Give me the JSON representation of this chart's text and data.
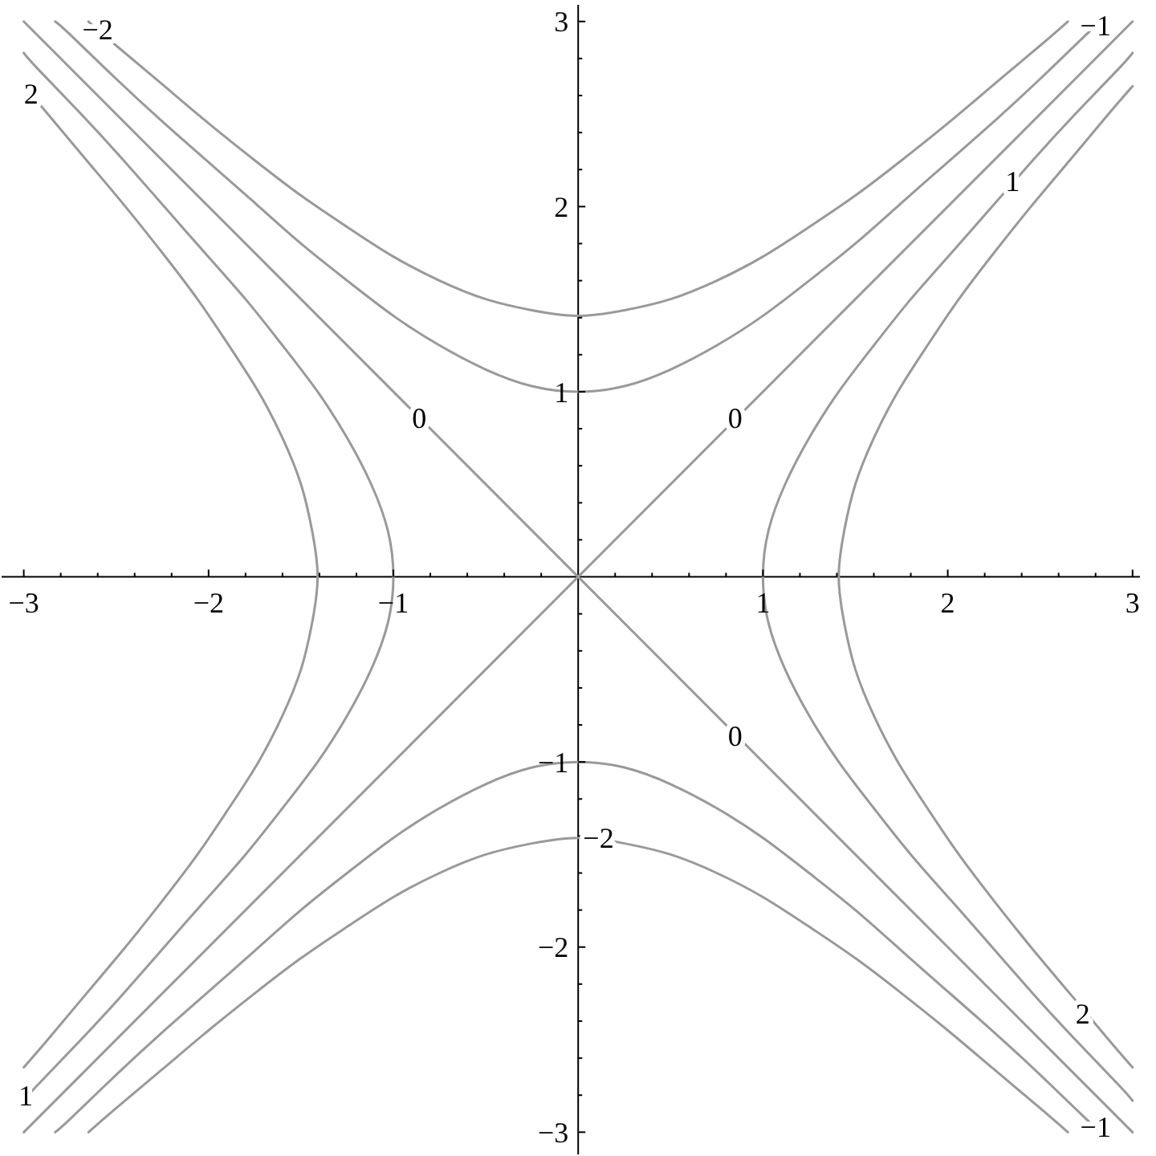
{
  "chart_data": {
    "type": "line",
    "xlim": [
      -3.12,
      3.04
    ],
    "ylim": [
      -3.12,
      3.09
    ],
    "xticks": [
      -3,
      {
        "value": -2.8,
        "label": null
      },
      {
        "value": -2.6,
        "label": null
      },
      {
        "value": -2.4,
        "label": null
      },
      {
        "value": -2.2,
        "label": null
      },
      -2,
      {
        "value": -1.8,
        "label": null
      },
      {
        "value": -1.6,
        "label": null
      },
      {
        "value": -1.4,
        "label": null
      },
      {
        "value": -1.2,
        "label": null
      },
      -1,
      {
        "value": -0.8,
        "label": null
      },
      {
        "value": -0.6,
        "label": null
      },
      {
        "value": -0.4,
        "label": null
      },
      {
        "value": -0.2,
        "label": null
      },
      {
        "value": 0.2,
        "label": null
      },
      {
        "value": 0.4,
        "label": null
      },
      {
        "value": 0.6,
        "label": null
      },
      {
        "value": 0.8,
        "label": null
      },
      1,
      {
        "value": 1.2,
        "label": null
      },
      {
        "value": 1.4,
        "label": null
      },
      {
        "value": 1.6,
        "label": null
      },
      {
        "value": 1.8,
        "label": null
      },
      2,
      {
        "value": 2.2,
        "label": null
      },
      {
        "value": 2.4,
        "label": null
      },
      {
        "value": 2.6,
        "label": null
      },
      {
        "value": 2.8,
        "label": null
      },
      3
    ],
    "yticks": [
      -3,
      {
        "value": -2.8,
        "label": null
      },
      {
        "value": -2.6,
        "label": null
      },
      {
        "value": -2.4,
        "label": null
      },
      {
        "value": -2.2,
        "label": null
      },
      -2,
      {
        "value": -1.8,
        "label": null
      },
      {
        "value": -1.6,
        "label": null
      },
      {
        "value": -1.4,
        "label": null
      },
      {
        "value": -1.2,
        "label": null
      },
      -1,
      {
        "value": -0.8,
        "label": null
      },
      {
        "value": -0.6,
        "label": null
      },
      {
        "value": -0.4,
        "label": null
      },
      {
        "value": -0.2,
        "label": null
      },
      {
        "value": 0.2,
        "label": null
      },
      {
        "value": 0.4,
        "label": null
      },
      {
        "value": 0.6,
        "label": null
      },
      {
        "value": 0.8,
        "label": null
      },
      1,
      {
        "value": 1.2,
        "label": null
      },
      {
        "value": 1.4,
        "label": null
      },
      {
        "value": 1.6,
        "label": null
      },
      {
        "value": 1.8,
        "label": null
      },
      2,
      {
        "value": 2.2,
        "label": null
      },
      {
        "value": 2.4,
        "label": null
      },
      {
        "value": 2.6,
        "label": null
      },
      {
        "value": 2.8,
        "label": null
      },
      3
    ],
    "marker": "none",
    "series": [
      {
        "color": "#999999",
        "x": [
          -2.65,
          -2.5,
          -2.25,
          -2,
          -1.75,
          -1.5,
          -1.25,
          -1,
          -0.75,
          -0.5,
          -0.25,
          0,
          0.25,
          0.5,
          0.75,
          1,
          1.25,
          1.5,
          1.75,
          2,
          2.25,
          2.5,
          2.65
        ],
        "values": [
          3,
          2.87,
          2.66,
          2.45,
          2.25,
          2.06,
          1.89,
          1.73,
          1.6,
          1.5,
          1.44,
          1.41,
          1.44,
          1.5,
          1.6,
          1.73,
          1.89,
          2.06,
          2.25,
          2.45,
          2.66,
          2.87,
          3
        ]
      },
      {
        "color": "#999999",
        "x": [
          -2.65,
          -2.5,
          -2.25,
          -2,
          -1.75,
          -1.5,
          -1.25,
          -1,
          -0.75,
          -0.5,
          -0.25,
          0,
          0.25,
          0.5,
          0.75,
          1,
          1.25,
          1.5,
          1.75,
          2,
          2.25,
          2.5,
          2.65
        ],
        "values": [
          -3,
          -2.87,
          -2.66,
          -2.45,
          -2.25,
          -2.06,
          -1.89,
          -1.73,
          -1.6,
          -1.5,
          -1.44,
          -1.41,
          -1.44,
          -1.5,
          -1.6,
          -1.73,
          -1.89,
          -2.06,
          -2.25,
          -2.45,
          -2.66,
          -2.87,
          -3
        ]
      },
      {
        "color": "#999999",
        "x": [
          -2.83,
          -2.75,
          -2.5,
          -2.25,
          -2,
          -1.75,
          -1.5,
          -1.25,
          -1,
          -0.75,
          -0.5,
          -0.25,
          0,
          0.25,
          0.5,
          0.75,
          1,
          1.25,
          1.5,
          1.75,
          2,
          2.25,
          2.5,
          2.75,
          2.83
        ],
        "values": [
          3,
          2.93,
          2.69,
          2.46,
          2.24,
          2.02,
          1.8,
          1.6,
          1.41,
          1.25,
          1.12,
          1.03,
          1,
          1.03,
          1.12,
          1.25,
          1.41,
          1.6,
          1.8,
          2.02,
          2.24,
          2.46,
          2.69,
          2.93,
          3
        ]
      },
      {
        "color": "#999999",
        "x": [
          -2.83,
          -2.75,
          -2.5,
          -2.25,
          -2,
          -1.75,
          -1.5,
          -1.25,
          -1,
          -0.75,
          -0.5,
          -0.25,
          0,
          0.25,
          0.5,
          0.75,
          1,
          1.25,
          1.5,
          1.75,
          2,
          2.25,
          2.5,
          2.75,
          2.83
        ],
        "values": [
          -3,
          -2.93,
          -2.69,
          -2.46,
          -2.24,
          -2.02,
          -1.8,
          -1.6,
          -1.41,
          -1.25,
          -1.12,
          -1.03,
          -1,
          -1.03,
          -1.12,
          -1.25,
          -1.41,
          -1.6,
          -1.8,
          -2.02,
          -2.24,
          -2.46,
          -2.69,
          -2.93,
          -3
        ]
      },
      {
        "color": "#999999",
        "x": [
          -3,
          3
        ],
        "values": [
          -3,
          3
        ]
      },
      {
        "color": "#999999",
        "x": [
          -3,
          3
        ],
        "values": [
          3,
          -3
        ]
      },
      {
        "color": "#999999",
        "x": [
          3,
          2.93,
          2.69,
          2.46,
          2.24,
          2.02,
          1.8,
          1.6,
          1.41,
          1.25,
          1.12,
          1.03,
          1,
          1.03,
          1.12,
          1.25,
          1.41,
          1.6,
          1.8,
          2.02,
          2.24,
          2.46,
          2.69,
          2.93,
          3
        ],
        "values": [
          -2.83,
          -2.75,
          -2.5,
          -2.25,
          -2,
          -1.75,
          -1.5,
          -1.25,
          -1,
          -0.75,
          -0.5,
          -0.25,
          0,
          0.25,
          0.5,
          0.75,
          1,
          1.25,
          1.5,
          1.75,
          2,
          2.25,
          2.5,
          2.75,
          2.83
        ]
      },
      {
        "color": "#999999",
        "x": [
          -3,
          -2.93,
          -2.69,
          -2.46,
          -2.24,
          -2.02,
          -1.8,
          -1.6,
          -1.41,
          -1.25,
          -1.12,
          -1.03,
          -1,
          -1.03,
          -1.12,
          -1.25,
          -1.41,
          -1.6,
          -1.8,
          -2.02,
          -2.24,
          -2.46,
          -2.69,
          -2.93,
          -3
        ],
        "values": [
          -2.83,
          -2.75,
          -2.5,
          -2.25,
          -2,
          -1.75,
          -1.5,
          -1.25,
          -1,
          -0.75,
          -0.5,
          -0.25,
          0,
          0.25,
          0.5,
          0.75,
          1,
          1.25,
          1.5,
          1.75,
          2,
          2.25,
          2.5,
          2.75,
          2.83
        ]
      },
      {
        "color": "#999999",
        "x": [
          3,
          2.87,
          2.66,
          2.45,
          2.25,
          2.06,
          1.89,
          1.73,
          1.6,
          1.5,
          1.44,
          1.41,
          1.44,
          1.5,
          1.6,
          1.73,
          1.89,
          2.06,
          2.25,
          2.45,
          2.66,
          2.87,
          3
        ],
        "values": [
          -2.65,
          -2.5,
          -2.25,
          -2,
          -1.75,
          -1.5,
          -1.25,
          -1,
          -0.75,
          -0.5,
          -0.25,
          0,
          0.25,
          0.5,
          0.75,
          1,
          1.25,
          1.5,
          1.75,
          2,
          2.25,
          2.5,
          2.65
        ]
      },
      {
        "color": "#999999",
        "x": [
          -3,
          -2.87,
          -2.66,
          -2.45,
          -2.25,
          -2.06,
          -1.89,
          -1.73,
          -1.6,
          -1.5,
          -1.44,
          -1.41,
          -1.44,
          -1.5,
          -1.6,
          -1.73,
          -1.89,
          -2.06,
          -2.25,
          -2.45,
          -2.66,
          -2.87,
          -3
        ],
        "values": [
          -2.65,
          -2.5,
          -2.25,
          -2,
          -1.75,
          -1.5,
          -1.25,
          -1,
          -0.75,
          -0.5,
          -0.25,
          0,
          0.25,
          0.5,
          0.75,
          1,
          1.25,
          1.5,
          1.75,
          2,
          2.25,
          2.5,
          2.65
        ]
      }
    ],
    "annotations": [
      {
        "text": "−2",
        "x": -2.6,
        "y": 2.96
      },
      {
        "text": "2",
        "x": -2.96,
        "y": 2.61
      },
      {
        "text": "0",
        "x": -0.86,
        "y": 0.86
      },
      {
        "text": "0",
        "x": 0.85,
        "y": 0.86
      },
      {
        "text": "1",
        "x": 2.35,
        "y": 2.14
      },
      {
        "text": "−1",
        "x": 2.8,
        "y": 2.98
      },
      {
        "text": "0",
        "x": 0.85,
        "y": -0.86
      },
      {
        "text": "−2",
        "x": 0.11,
        "y": -1.41
      },
      {
        "text": "1",
        "x": -2.99,
        "y": -2.8
      },
      {
        "text": "2",
        "x": 2.73,
        "y": -2.36
      },
      {
        "text": "−1",
        "x": 2.8,
        "y": -2.97
      }
    ]
  }
}
